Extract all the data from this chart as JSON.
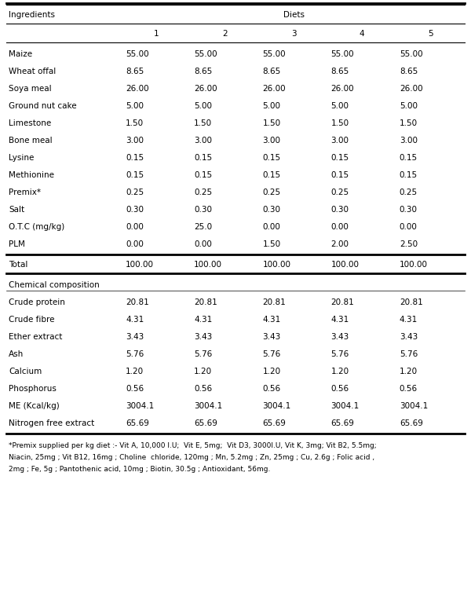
{
  "title_left": "Ingredients",
  "title_right": "Diets",
  "col_headers": [
    "",
    "1",
    "2",
    "3",
    "4",
    "5"
  ],
  "rows": [
    [
      "Maize",
      "55.00",
      "55.00",
      "55.00",
      "55.00",
      "55.00"
    ],
    [
      "Wheat offal",
      "8.65",
      "8.65",
      "8.65",
      "8.65",
      "8.65"
    ],
    [
      "Soya meal",
      "26.00",
      "26.00",
      "26.00",
      "26.00",
      "26.00"
    ],
    [
      "Ground nut cake",
      "5.00",
      "5.00",
      "5.00",
      "5.00",
      "5.00"
    ],
    [
      "Limestone",
      "1.50",
      "1.50",
      "1.50",
      "1.50",
      "1.50"
    ],
    [
      "Bone meal",
      "3.00",
      "3.00",
      "3.00",
      "3.00",
      "3.00"
    ],
    [
      "Lysine",
      "0.15",
      "0.15",
      "0.15",
      "0.15",
      "0.15"
    ],
    [
      "Methionine",
      "0.15",
      "0.15",
      "0.15",
      "0.15",
      "0.15"
    ],
    [
      "Premix*",
      "0.25",
      "0.25",
      "0.25",
      "0.25",
      "0.25"
    ],
    [
      "Salt",
      "0.30",
      "0.30",
      "0.30",
      "0.30",
      "0.30"
    ],
    [
      "O.T.C (mg/kg)",
      "0.00",
      "25.0",
      "0.00",
      "0.00",
      "0.00"
    ],
    [
      "PLM",
      "0.00",
      "0.00",
      "1.50",
      "2.00",
      "2.50"
    ]
  ],
  "total_row": [
    "Total",
    "100.00",
    "100.00",
    "100.00",
    "100.00",
    "100.00"
  ],
  "section_header": "Chemical composition",
  "chem_rows": [
    [
      "Crude protein",
      "20.81",
      "20.81",
      "20.81",
      "20.81",
      "20.81"
    ],
    [
      "Crude fibre",
      "4.31",
      "4.31",
      "4.31",
      "4.31",
      "4.31"
    ],
    [
      "Ether extract",
      "3.43",
      "3.43",
      "3.43",
      "3.43",
      "3.43"
    ],
    [
      "Ash",
      "5.76",
      "5.76",
      "5.76",
      "5.76",
      "5.76"
    ],
    [
      "Calcium",
      "1.20",
      "1.20",
      "1.20",
      "1.20",
      "1.20"
    ],
    [
      "Phosphorus",
      "0.56",
      "0.56",
      "0.56",
      "0.56",
      "0.56"
    ],
    [
      "ME (Kcal/kg)",
      "3004.1",
      "3004.1",
      "3004.1",
      "3004.1",
      "3004.1"
    ],
    [
      "Nitrogen free extract",
      "65.69",
      "65.69",
      "65.69",
      "65.69",
      "65.69"
    ]
  ],
  "footnote_lines": [
    "*Premix supplied per kg diet :- Vit A, 10,000 I.U;  Vit E, 5mg;  Vit D3, 3000I.U, Vit K, 3mg; Vit B2, 5.5mg;",
    "Niacin, 25mg ; Vit B12, 16mg ; Choline  chloride, 120mg ; Mn, 5.2mg ; Zn, 25mg ; Cu, 2.6g ; Folic acid ,",
    "2mg ; Fe, 5g ; Pantothenic acid, 10mg ; Biotin, 30.5g ; Antioxidant, 56mg."
  ],
  "bg_color": "#ffffff",
  "text_color": "#000000",
  "font_size": 7.5,
  "footnote_font_size": 6.5
}
